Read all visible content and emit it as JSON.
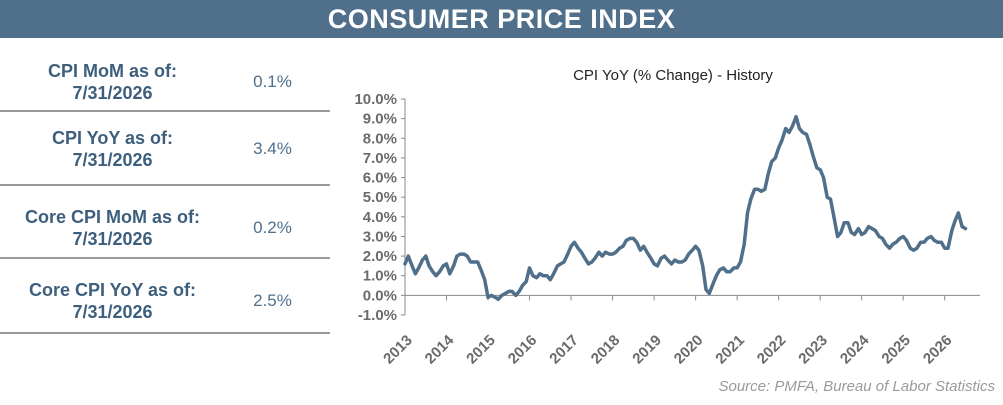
{
  "header": {
    "title": "CONSUMER PRICE INDEX"
  },
  "stats": [
    {
      "label_line1": "CPI MoM as of:",
      "label_line2": "7/31/2026",
      "value": "0.1%"
    },
    {
      "label_line1": "CPI YoY as of:",
      "label_line2": "7/31/2026",
      "value": "3.4%"
    },
    {
      "label_line1": "Core CPI MoM as of:",
      "label_line2": "7/31/2026",
      "value": "0.2%"
    },
    {
      "label_line1": "Core CPI YoY as of:",
      "label_line2": "7/31/2026",
      "value": "2.5%"
    }
  ],
  "source": "Source:  PMFA,  Bureau of Labor Statistics",
  "colors": {
    "header_bg": "#4f6f8a",
    "line": "#4f6f8a",
    "label_text": "#3d5f7d"
  },
  "chart_data": {
    "type": "line",
    "title": "CPI YoY (% Change) - History",
    "xlabel": "",
    "ylabel": "",
    "grid": false,
    "legend": "none",
    "ylim": [
      -1.0,
      10.0
    ],
    "xlim": [
      2013.0,
      2026.85
    ],
    "y_ticks": [
      -1.0,
      0.0,
      1.0,
      2.0,
      3.0,
      4.0,
      5.0,
      6.0,
      7.0,
      8.0,
      9.0,
      10.0
    ],
    "y_tick_labels": [
      "-1.0%",
      "0.0%",
      "1.0%",
      "2.0%",
      "3.0%",
      "4.0%",
      "5.0%",
      "6.0%",
      "7.0%",
      "8.0%",
      "9.0%",
      "10.0%"
    ],
    "x_ticks": [
      2013,
      2014,
      2015,
      2016,
      2017,
      2018,
      2019,
      2020,
      2021,
      2022,
      2023,
      2024,
      2025,
      2026
    ],
    "x_tick_labels": [
      "2013",
      "2014",
      "2015",
      "2016",
      "2017",
      "2018",
      "2019",
      "2020",
      "2021",
      "2022",
      "2023",
      "2024",
      "2025",
      "2026"
    ],
    "series": [
      {
        "color": "#4f6f8a",
        "x": [
          2013.0,
          2013.08,
          2013.17,
          2013.25,
          2013.33,
          2013.42,
          2013.5,
          2013.58,
          2013.67,
          2013.75,
          2013.83,
          2013.92,
          2014.0,
          2014.08,
          2014.17,
          2014.25,
          2014.33,
          2014.42,
          2014.5,
          2014.58,
          2014.67,
          2014.75,
          2014.83,
          2014.92,
          2015.0,
          2015.08,
          2015.17,
          2015.25,
          2015.33,
          2015.42,
          2015.5,
          2015.58,
          2015.67,
          2015.75,
          2015.83,
          2015.92,
          2016.0,
          2016.08,
          2016.17,
          2016.25,
          2016.33,
          2016.42,
          2016.5,
          2016.58,
          2016.67,
          2016.75,
          2016.83,
          2016.92,
          2017.0,
          2017.08,
          2017.17,
          2017.25,
          2017.33,
          2017.42,
          2017.5,
          2017.58,
          2017.67,
          2017.75,
          2017.83,
          2017.92,
          2018.0,
          2018.08,
          2018.17,
          2018.25,
          2018.33,
          2018.42,
          2018.5,
          2018.58,
          2018.67,
          2018.75,
          2018.83,
          2018.92,
          2019.0,
          2019.08,
          2019.17,
          2019.25,
          2019.33,
          2019.42,
          2019.5,
          2019.58,
          2019.67,
          2019.75,
          2019.83,
          2019.92,
          2020.0,
          2020.08,
          2020.17,
          2020.25,
          2020.33,
          2020.42,
          2020.5,
          2020.58,
          2020.67,
          2020.75,
          2020.83,
          2020.92,
          2021.0,
          2021.08,
          2021.17,
          2021.25,
          2021.33,
          2021.42,
          2021.5,
          2021.58,
          2021.67,
          2021.75,
          2021.83,
          2021.92,
          2022.0,
          2022.08,
          2022.17,
          2022.25,
          2022.33,
          2022.42,
          2022.5,
          2022.58,
          2022.67,
          2022.75,
          2022.83,
          2022.92,
          2023.0,
          2023.08,
          2023.17,
          2023.25,
          2023.33,
          2023.42,
          2023.5,
          2023.58,
          2023.67,
          2023.75,
          2023.83,
          2023.92,
          2024.0,
          2024.08,
          2024.17,
          2024.25,
          2024.33,
          2024.42,
          2024.5,
          2024.58,
          2024.67,
          2024.75,
          2024.83,
          2024.92,
          2025.0,
          2025.08,
          2025.17,
          2025.25,
          2025.33,
          2025.42,
          2025.5,
          2025.58,
          2025.67,
          2025.75,
          2025.83,
          2025.92,
          2026.0,
          2026.08,
          2026.17,
          2026.25,
          2026.33,
          2026.42,
          2026.5
        ],
        "y": [
          1.6,
          2.0,
          1.5,
          1.1,
          1.4,
          1.8,
          2.0,
          1.5,
          1.2,
          1.0,
          1.2,
          1.5,
          1.6,
          1.1,
          1.5,
          2.0,
          2.1,
          2.1,
          2.0,
          1.7,
          1.7,
          1.7,
          1.3,
          0.8,
          -0.1,
          0.0,
          -0.1,
          -0.2,
          0.0,
          0.1,
          0.2,
          0.2,
          0.0,
          0.2,
          0.5,
          0.7,
          1.4,
          1.0,
          0.9,
          1.1,
          1.0,
          1.0,
          0.8,
          1.1,
          1.5,
          1.6,
          1.7,
          2.1,
          2.5,
          2.7,
          2.4,
          2.2,
          1.9,
          1.6,
          1.7,
          1.9,
          2.2,
          2.0,
          2.2,
          2.1,
          2.1,
          2.2,
          2.4,
          2.5,
          2.8,
          2.9,
          2.9,
          2.7,
          2.3,
          2.5,
          2.2,
          1.9,
          1.6,
          1.5,
          1.9,
          2.0,
          1.8,
          1.6,
          1.8,
          1.7,
          1.7,
          1.8,
          2.1,
          2.3,
          2.5,
          2.3,
          1.5,
          0.3,
          0.1,
          0.6,
          1.0,
          1.3,
          1.4,
          1.2,
          1.2,
          1.4,
          1.4,
          1.7,
          2.6,
          4.2,
          4.9,
          5.4,
          5.4,
          5.3,
          5.4,
          6.2,
          6.8,
          7.0,
          7.5,
          7.9,
          8.5,
          8.3,
          8.6,
          9.1,
          8.5,
          8.3,
          8.2,
          7.7,
          7.1,
          6.5,
          6.4,
          6.0,
          5.0,
          4.9,
          4.0,
          3.0,
          3.2,
          3.7,
          3.7,
          3.2,
          3.1,
          3.4,
          3.1,
          3.2,
          3.5,
          3.4,
          3.3,
          3.0,
          2.9,
          2.6,
          2.4,
          2.6,
          2.7,
          2.9,
          3.0,
          2.8,
          2.4,
          2.3,
          2.4,
          2.7,
          2.7,
          2.9,
          3.0,
          2.8,
          2.7,
          2.7,
          2.4,
          2.4,
          3.3,
          3.8,
          4.2,
          3.5,
          3.4
        ]
      }
    ]
  }
}
